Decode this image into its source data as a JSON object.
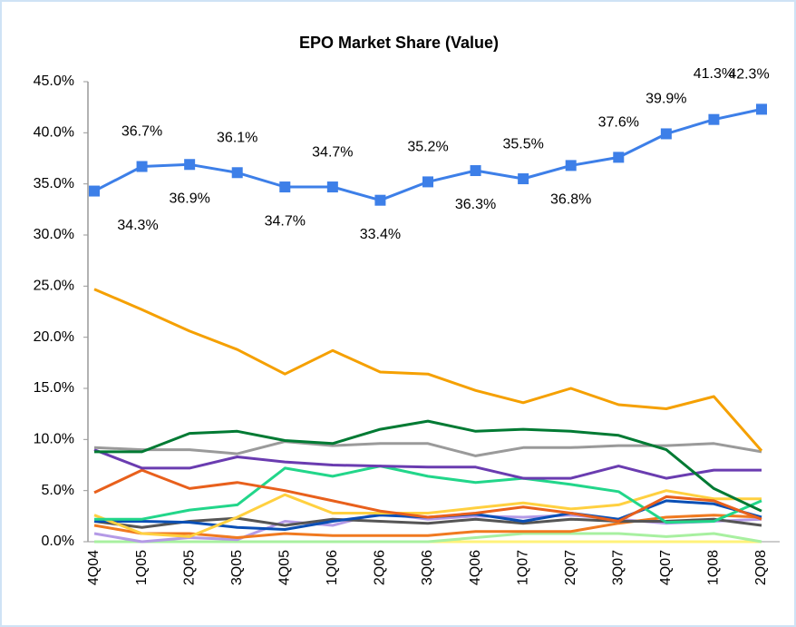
{
  "chart_data": {
    "type": "line",
    "title": "EPO Market Share (Value)",
    "categories": [
      "4Q04",
      "1Q05",
      "2Q05",
      "3Q05",
      "4Q05",
      "1Q06",
      "2Q06",
      "3Q06",
      "4Q06",
      "1Q07",
      "2Q07",
      "3Q07",
      "4Q07",
      "1Q08",
      "2Q08"
    ],
    "ylim": [
      0,
      45
    ],
    "yticks": [
      {
        "value": 0,
        "label": "0.0%"
      },
      {
        "value": 5,
        "label": "5.0%"
      },
      {
        "value": 10,
        "label": "10.0%"
      },
      {
        "value": 15,
        "label": "15.0%"
      },
      {
        "value": 20,
        "label": "20.0%"
      },
      {
        "value": 25,
        "label": "25.0%"
      },
      {
        "value": 30,
        "label": "30.0%"
      },
      {
        "value": 35,
        "label": "35.0%"
      },
      {
        "value": 40,
        "label": "40.0%"
      },
      {
        "value": 45,
        "label": "45.0%"
      }
    ],
    "series": [
      {
        "color": "#fff27a",
        "values": [
          0,
          0,
          0,
          0,
          0,
          0,
          0,
          0,
          0,
          0,
          0,
          0,
          0,
          0,
          0
        ]
      },
      {
        "color": "#a8f0a0",
        "values": [
          0,
          0,
          0,
          0,
          0,
          0,
          0,
          0,
          0.4,
          0.8,
          0.8,
          0.8,
          0.5,
          0.8,
          0
        ]
      },
      {
        "color": "#b49ae6",
        "values": [
          0.8,
          0,
          0.4,
          0.2,
          2.0,
          1.6,
          2.8,
          2.2,
          2.5,
          2.4,
          2.6,
          2.2,
          1.8,
          2.0,
          2.2
        ]
      },
      {
        "color": "#f07a20",
        "values": [
          1.6,
          0.8,
          0.8,
          0.4,
          0.8,
          0.6,
          0.6,
          0.6,
          1.0,
          1.0,
          1.0,
          1.8,
          2.4,
          2.6,
          2.4
        ]
      },
      {
        "color": "#555555",
        "values": [
          2.0,
          1.4,
          2.0,
          2.3,
          1.6,
          2.2,
          2.0,
          1.8,
          2.2,
          1.8,
          2.2,
          2.0,
          2.0,
          2.2,
          1.6
        ]
      },
      {
        "color": "#0a4fb5",
        "values": [
          2.0,
          2.0,
          1.9,
          1.4,
          1.2,
          2.0,
          2.6,
          2.4,
          2.7,
          2.0,
          2.8,
          2.2,
          4.0,
          3.7,
          2.4
        ]
      },
      {
        "color": "#ffd040",
        "values": [
          2.6,
          0.8,
          0.5,
          2.4,
          4.6,
          2.8,
          2.8,
          2.8,
          3.3,
          3.8,
          3.2,
          3.6,
          5.0,
          4.2,
          4.2
        ]
      },
      {
        "color": "#22d68a",
        "values": [
          2.2,
          2.2,
          3.1,
          3.6,
          7.2,
          6.4,
          7.4,
          6.4,
          5.8,
          6.2,
          5.6,
          4.9,
          1.9,
          2.0,
          4.0
        ]
      },
      {
        "color": "#e8601c",
        "values": [
          4.8,
          7.0,
          5.2,
          5.8,
          5.0,
          4.0,
          3.0,
          2.4,
          2.8,
          3.4,
          2.8,
          2.0,
          4.4,
          4.0,
          2.2
        ]
      },
      {
        "color": "#6a3cb0",
        "values": [
          9.0,
          7.2,
          7.2,
          8.3,
          7.8,
          7.5,
          7.4,
          7.3,
          7.3,
          6.2,
          6.2,
          7.4,
          6.2,
          7.0,
          7.0
        ]
      },
      {
        "color": "#9a9a9a",
        "values": [
          9.2,
          9.0,
          9.0,
          8.6,
          9.8,
          9.4,
          9.6,
          9.6,
          8.4,
          9.2,
          9.2,
          9.4,
          9.4,
          9.6,
          8.8
        ]
      },
      {
        "color": "#007a33",
        "values": [
          8.8,
          8.8,
          10.6,
          10.8,
          9.9,
          9.6,
          11.0,
          11.8,
          10.8,
          11.0,
          10.8,
          10.4,
          9.0,
          5.2,
          3.0
        ]
      },
      {
        "color": "#f5a000",
        "values": [
          24.7,
          22.7,
          20.6,
          18.8,
          16.4,
          18.7,
          16.6,
          16.4,
          14.8,
          13.6,
          15.0,
          13.4,
          13.0,
          14.2,
          8.9
        ]
      },
      {
        "color": "#3d7fe8",
        "markers": true,
        "values": [
          34.3,
          36.7,
          36.9,
          36.1,
          34.7,
          34.7,
          33.4,
          35.2,
          36.3,
          35.5,
          36.8,
          37.6,
          39.9,
          41.3,
          42.3
        ],
        "value_labels": [
          "34.3%",
          "36.7%",
          "36.9%",
          "36.1%",
          "34.7%",
          "34.7%",
          "33.4%",
          "35.2%",
          "36.3%",
          "35.5%",
          "36.8%",
          "37.6%",
          "39.9%",
          "41.3%",
          "42.3%"
        ]
      }
    ]
  }
}
